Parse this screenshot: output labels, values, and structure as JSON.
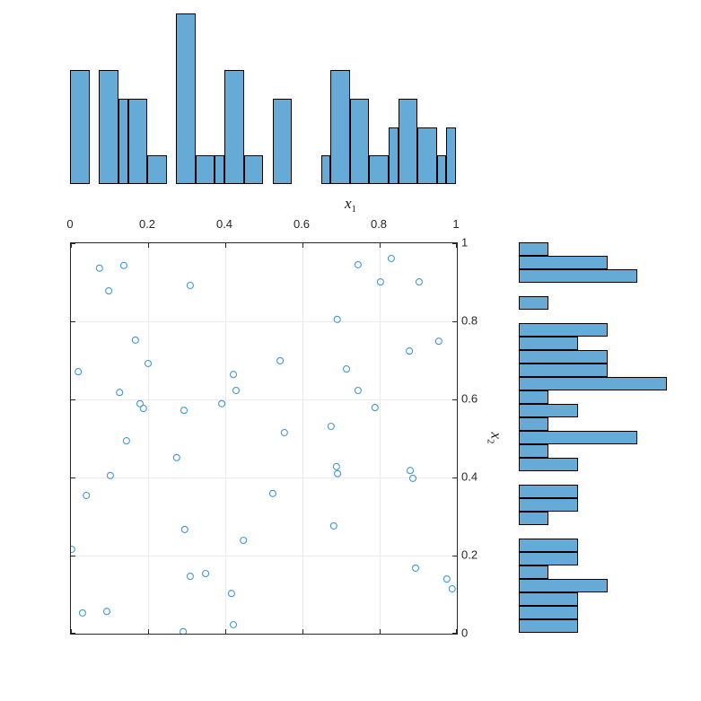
{
  "figure": {
    "colors": {
      "background": "#ffffff",
      "bar_fill": "#66aad7",
      "bar_edge": "#000000",
      "marker": "#4499ce",
      "axis": "#262626",
      "grid": "#ebebeb",
      "text": "#262626"
    },
    "xlabel": {
      "var": "x",
      "sub": "1"
    },
    "ylabel": {
      "var": "x",
      "sub": "2"
    }
  },
  "chart_data": {
    "type": "scatter",
    "title": "",
    "xlabel": "x_1",
    "ylabel": "x_2",
    "xlim": [
      0,
      1
    ],
    "ylim": [
      0,
      1
    ],
    "grid": true,
    "legend": "none",
    "x_ticks": [
      {
        "v": 0.0,
        "label": "0"
      },
      {
        "v": 0.2,
        "label": "0.2"
      },
      {
        "v": 0.4,
        "label": "0.4"
      },
      {
        "v": 0.6,
        "label": "0.6"
      },
      {
        "v": 0.8,
        "label": "0.8"
      },
      {
        "v": 1.0,
        "label": "1"
      }
    ],
    "y_ticks": [
      {
        "v": 1.0,
        "label": "1"
      },
      {
        "v": 0.8,
        "label": "0.8"
      },
      {
        "v": 0.6,
        "label": "0.6"
      },
      {
        "v": 0.4,
        "label": "0.4"
      },
      {
        "v": 0.2,
        "label": "0.2"
      },
      {
        "v": 0.0,
        "label": "0"
      }
    ],
    "points": [
      [
        0.074,
        0.936
      ],
      [
        0.137,
        0.943
      ],
      [
        0.098,
        0.878
      ],
      [
        0.309,
        0.892
      ],
      [
        0.744,
        0.945
      ],
      [
        0.83,
        0.961
      ],
      [
        0.802,
        0.901
      ],
      [
        0.902,
        0.901
      ],
      [
        0.69,
        0.805
      ],
      [
        0.953,
        0.749
      ],
      [
        0.167,
        0.752
      ],
      [
        0.877,
        0.724
      ],
      [
        0.019,
        0.671
      ],
      [
        0.2,
        0.692
      ],
      [
        0.542,
        0.699
      ],
      [
        0.714,
        0.678
      ],
      [
        0.421,
        0.664
      ],
      [
        0.126,
        0.618
      ],
      [
        0.428,
        0.623
      ],
      [
        0.744,
        0.623
      ],
      [
        0.179,
        0.589
      ],
      [
        0.188,
        0.577
      ],
      [
        0.391,
        0.589
      ],
      [
        0.293,
        0.572
      ],
      [
        0.788,
        0.579
      ],
      [
        0.553,
        0.515
      ],
      [
        0.674,
        0.531
      ],
      [
        0.144,
        0.494
      ],
      [
        0.274,
        0.451
      ],
      [
        0.688,
        0.428
      ],
      [
        0.691,
        0.41
      ],
      [
        0.879,
        0.418
      ],
      [
        0.886,
        0.398
      ],
      [
        0.102,
        0.405
      ],
      [
        0.04,
        0.354
      ],
      [
        0.523,
        0.359
      ],
      [
        0.295,
        0.267
      ],
      [
        0.681,
        0.276
      ],
      [
        0.447,
        0.239
      ],
      [
        0.002,
        0.216
      ],
      [
        0.893,
        0.168
      ],
      [
        0.309,
        0.147
      ],
      [
        0.349,
        0.154
      ],
      [
        0.974,
        0.14
      ],
      [
        0.988,
        0.115
      ],
      [
        0.416,
        0.103
      ],
      [
        0.03,
        0.053
      ],
      [
        0.093,
        0.057
      ],
      [
        0.421,
        0.023
      ],
      [
        0.291,
        0.005
      ]
    ],
    "marginal_histograms": {
      "top": {
        "type": "bar",
        "orientation": "vertical",
        "variable": "x_1",
        "max_count": 6,
        "bars": [
          {
            "x0": 0.0,
            "x1": 0.05,
            "count": 4
          },
          {
            "x0": 0.075,
            "x1": 0.125,
            "count": 4
          },
          {
            "x0": 0.125,
            "x1": 0.15,
            "count": 3
          },
          {
            "x0": 0.15,
            "x1": 0.2,
            "count": 3
          },
          {
            "x0": 0.2,
            "x1": 0.25,
            "count": 1
          },
          {
            "x0": 0.275,
            "x1": 0.325,
            "count": 6
          },
          {
            "x0": 0.325,
            "x1": 0.375,
            "count": 1
          },
          {
            "x0": 0.375,
            "x1": 0.4,
            "count": 1
          },
          {
            "x0": 0.4,
            "x1": 0.45,
            "count": 4
          },
          {
            "x0": 0.45,
            "x1": 0.5,
            "count": 1
          },
          {
            "x0": 0.525,
            "x1": 0.575,
            "count": 3
          },
          {
            "x0": 0.65,
            "x1": 0.675,
            "count": 1
          },
          {
            "x0": 0.675,
            "x1": 0.725,
            "count": 4
          },
          {
            "x0": 0.725,
            "x1": 0.775,
            "count": 3
          },
          {
            "x0": 0.775,
            "x1": 0.825,
            "count": 1
          },
          {
            "x0": 0.825,
            "x1": 0.85,
            "count": 2
          },
          {
            "x0": 0.85,
            "x1": 0.9,
            "count": 3
          },
          {
            "x0": 0.9,
            "x1": 0.95,
            "count": 2
          },
          {
            "x0": 0.95,
            "x1": 0.975,
            "count": 1
          },
          {
            "x0": 0.975,
            "x1": 1.0,
            "count": 2
          }
        ]
      },
      "right": {
        "type": "bar",
        "orientation": "horizontal",
        "variable": "x_2",
        "max_count": 5,
        "bars": [
          {
            "y0": 0.966,
            "y1": 1.0,
            "count": 1
          },
          {
            "y0": 0.931,
            "y1": 0.966,
            "count": 3
          },
          {
            "y0": 0.897,
            "y1": 0.931,
            "count": 4
          },
          {
            "y0": 0.828,
            "y1": 0.862,
            "count": 1
          },
          {
            "y0": 0.759,
            "y1": 0.793,
            "count": 3
          },
          {
            "y0": 0.724,
            "y1": 0.759,
            "count": 2
          },
          {
            "y0": 0.69,
            "y1": 0.724,
            "count": 3
          },
          {
            "y0": 0.655,
            "y1": 0.69,
            "count": 3
          },
          {
            "y0": 0.621,
            "y1": 0.655,
            "count": 5
          },
          {
            "y0": 0.586,
            "y1": 0.621,
            "count": 1
          },
          {
            "y0": 0.552,
            "y1": 0.586,
            "count": 2
          },
          {
            "y0": 0.517,
            "y1": 0.552,
            "count": 1
          },
          {
            "y0": 0.483,
            "y1": 0.517,
            "count": 4
          },
          {
            "y0": 0.448,
            "y1": 0.483,
            "count": 1
          },
          {
            "y0": 0.414,
            "y1": 0.448,
            "count": 2
          },
          {
            "y0": 0.345,
            "y1": 0.379,
            "count": 2
          },
          {
            "y0": 0.31,
            "y1": 0.345,
            "count": 2
          },
          {
            "y0": 0.276,
            "y1": 0.31,
            "count": 1
          },
          {
            "y0": 0.207,
            "y1": 0.241,
            "count": 2
          },
          {
            "y0": 0.172,
            "y1": 0.207,
            "count": 2
          },
          {
            "y0": 0.138,
            "y1": 0.172,
            "count": 1
          },
          {
            "y0": 0.103,
            "y1": 0.138,
            "count": 3
          },
          {
            "y0": 0.069,
            "y1": 0.103,
            "count": 2
          },
          {
            "y0": 0.034,
            "y1": 0.069,
            "count": 2
          },
          {
            "y0": 0.0,
            "y1": 0.034,
            "count": 2
          }
        ]
      }
    }
  }
}
